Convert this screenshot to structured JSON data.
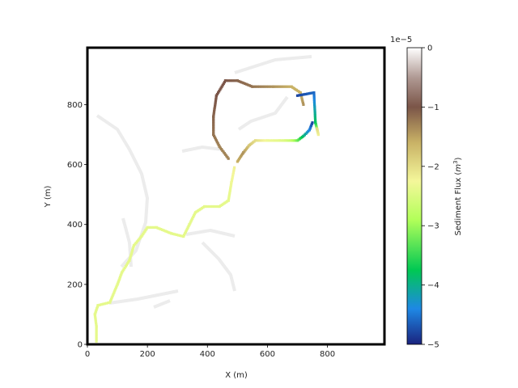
{
  "chart_data": {
    "type": "heatmap",
    "title": "",
    "xlabel": "X (m)",
    "ylabel": "Y (m)",
    "xlim": [
      0,
      990
    ],
    "ylim": [
      0,
      990
    ],
    "x_ticks": [
      0,
      200,
      400,
      600,
      800
    ],
    "y_ticks": [
      0,
      200,
      400,
      600,
      800
    ],
    "colorbar": {
      "label": "Sediment Flux (m³)",
      "label_text": "Sediment Flux (",
      "label_unit_base": "m",
      "label_unit_exp": "3",
      "label_close": ")",
      "offset_text": "1e−5",
      "range": [
        -5,
        0
      ],
      "ticks": [
        0,
        -1,
        -2,
        -3,
        -4,
        -5
      ],
      "tick_labels": [
        "0",
        "−1",
        "−2",
        "−3",
        "−4",
        "−5"
      ],
      "colormap": [
        "#1a237e",
        "#1e88e5",
        "#00c853",
        "#b2ff59",
        "#f4f79a",
        "#c9b266",
        "#7b5548",
        "#b09a94",
        "#ffffff"
      ]
    },
    "series": [
      {
        "values": [
          -2.4,
          -2.4,
          -2.4,
          -2.4,
          -2.4,
          -2.4,
          -2.4,
          -2.4,
          -2.4,
          -2.4,
          -2.4,
          -2.4,
          -2.4,
          -2.4,
          -2.4,
          -2.4,
          -2.4,
          -2.4,
          -2.4,
          -2.3,
          -2.2
        ],
        "x": [
          30,
          30,
          25,
          35,
          75,
          100,
          115,
          140,
          155,
          180,
          200,
          230,
          280,
          320,
          340,
          360,
          390,
          440,
          470,
          480,
          490
        ],
        "y": [
          10,
          60,
          100,
          130,
          140,
          200,
          240,
          280,
          330,
          360,
          390,
          390,
          370,
          360,
          400,
          440,
          460,
          460,
          480,
          540,
          590
        ]
      },
      {
        "values": [
          -1.6,
          -1.4,
          -1.8,
          -2.0,
          -2.3,
          -2.4,
          -2.5,
          -2.7,
          -3.2,
          -3.9,
          -4.4,
          -4.8
        ],
        "x": [
          500,
          520,
          540,
          560,
          600,
          640,
          660,
          680,
          700,
          720,
          740,
          750
        ],
        "y": [
          610,
          640,
          665,
          680,
          680,
          680,
          680,
          680,
          680,
          695,
          715,
          740
        ]
      },
      {
        "values": [
          -1.3,
          -1.3,
          -1.2,
          -1.1,
          -1.0,
          -1.0,
          -1.1,
          -1.2,
          -1.4,
          -1.6,
          -1.6,
          -1.4
        ],
        "x": [
          470,
          440,
          420,
          420,
          430,
          460,
          500,
          550,
          620,
          680,
          710,
          720
        ],
        "y": [
          620,
          660,
          700,
          760,
          830,
          880,
          880,
          860,
          860,
          860,
          840,
          800
        ]
      },
      {
        "values": [
          -4.8,
          -4.6,
          -3.8,
          -2.2,
          -2.0
        ],
        "x": [
          700,
          755,
          760,
          770,
          765
        ],
        "y": [
          830,
          840,
          740,
          700,
          720
        ]
      }
    ]
  }
}
